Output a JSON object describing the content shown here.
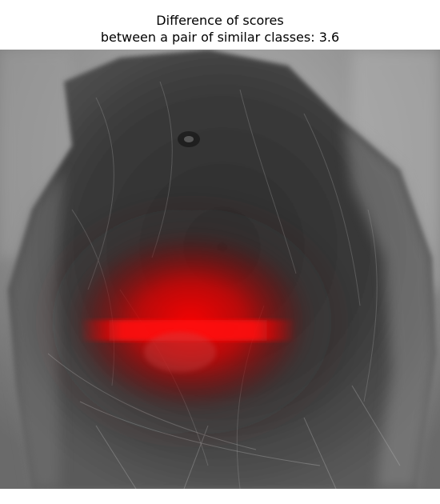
{
  "figure": {
    "title_line_1": "Difference of scores",
    "title_line_2": "between a pair of similar classes: 3.6"
  },
  "image": {
    "subject": "grayscale photo of a long-haired dark dog with a red saliency heatmap overlay",
    "overlay_color": "#ff0000",
    "background_color": "#ffffff"
  }
}
